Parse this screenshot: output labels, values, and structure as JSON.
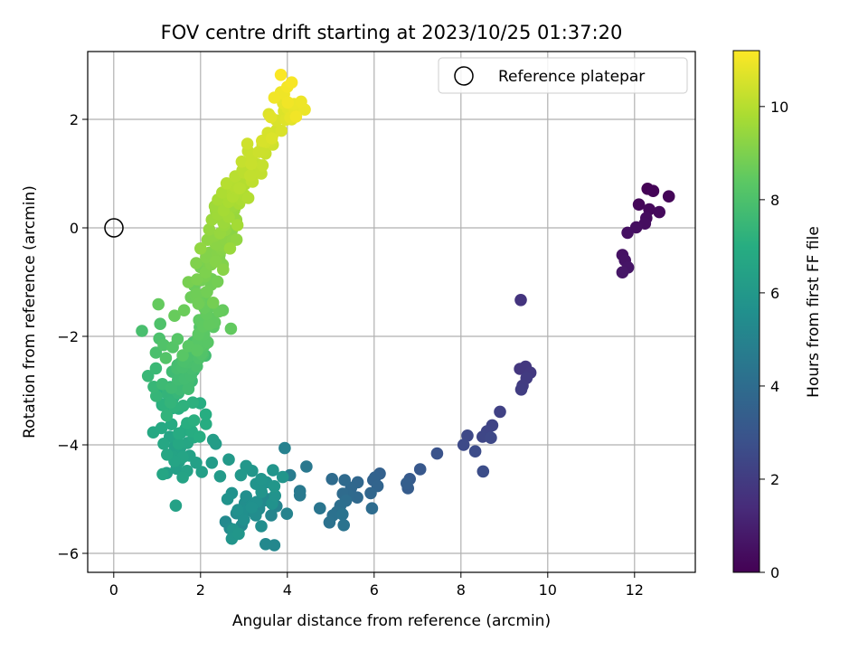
{
  "chart_data": {
    "type": "scatter",
    "title": "FOV centre drift starting at 2023/10/25 01:37:20",
    "xlabel": "Angular distance from reference (arcmin)",
    "ylabel": "Rotation from reference (arcmin)",
    "xlim": [
      -0.6,
      13.4
    ],
    "ylim": [
      -6.35,
      3.25
    ],
    "x_ticks": [
      0,
      2,
      4,
      6,
      8,
      10,
      12
    ],
    "x_tick_labels": [
      "0",
      "2",
      "4",
      "6",
      "8",
      "10",
      "12"
    ],
    "y_ticks": [
      -6,
      -4,
      -2,
      0,
      2
    ],
    "y_tick_labels": [
      "−6",
      "−4",
      "−2",
      "0",
      "2"
    ],
    "grid": true,
    "legend": {
      "position": "top-right",
      "entries": [
        {
          "label": "Reference platepar",
          "marker": "open-circle"
        }
      ]
    },
    "reference_point": {
      "x": 0,
      "y": 0
    },
    "colorbar": {
      "label": "Hours from first FF file",
      "colormap": "viridis",
      "range": [
        0,
        11.2
      ],
      "ticks": [
        0,
        2,
        4,
        6,
        8,
        10
      ],
      "tick_labels": [
        "0",
        "2",
        "4",
        "6",
        "8",
        "10"
      ]
    },
    "anchor_points": [
      [
        12.3,
        0.72,
        0.05
      ],
      [
        12.43,
        0.68,
        0.1
      ],
      [
        12.79,
        0.58,
        0.15
      ],
      [
        12.1,
        0.43,
        0.2
      ],
      [
        12.34,
        0.34,
        0.25
      ],
      [
        12.57,
        0.29,
        0.3
      ],
      [
        12.27,
        0.18,
        0.35
      ],
      [
        12.24,
        0.08,
        0.4
      ],
      [
        12.04,
        0.01,
        0.45
      ],
      [
        11.84,
        -0.09,
        0.5
      ],
      [
        11.72,
        -0.5,
        0.55
      ],
      [
        11.78,
        -0.6,
        0.6
      ],
      [
        11.85,
        -0.73,
        0.65
      ],
      [
        11.72,
        -0.82,
        0.7
      ],
      [
        9.38,
        -1.33,
        1.7
      ],
      [
        9.36,
        -2.6,
        1.8
      ],
      [
        9.49,
        -2.56,
        1.85
      ],
      [
        9.6,
        -2.67,
        1.9
      ],
      [
        9.51,
        -2.77,
        1.95
      ],
      [
        9.42,
        -2.91,
        2.0
      ],
      [
        9.39,
        -2.98,
        2.05
      ],
      [
        8.9,
        -3.39,
        2.2
      ],
      [
        8.72,
        -3.64,
        2.3
      ],
      [
        8.6,
        -3.75,
        2.35
      ],
      [
        8.5,
        -3.85,
        2.4
      ],
      [
        8.69,
        -3.87,
        2.45
      ],
      [
        8.15,
        -3.83,
        2.5
      ],
      [
        8.06,
        -4.0,
        2.55
      ],
      [
        8.33,
        -4.12,
        2.6
      ],
      [
        8.51,
        -4.49,
        2.65
      ],
      [
        7.45,
        -4.16,
        2.9
      ],
      [
        7.06,
        -4.45,
        3.1
      ],
      [
        6.82,
        -4.63,
        3.2
      ],
      [
        6.78,
        -4.8,
        3.3
      ],
      [
        6.75,
        -4.71,
        3.35
      ],
      [
        6.13,
        -4.53,
        3.5
      ],
      [
        6.02,
        -4.6,
        3.55
      ],
      [
        5.98,
        -4.65,
        3.6
      ],
      [
        6.08,
        -4.76,
        3.65
      ],
      [
        5.92,
        -4.89,
        3.7
      ],
      [
        5.62,
        -4.69,
        3.75
      ],
      [
        5.47,
        -4.79,
        3.8
      ],
      [
        5.61,
        -4.97,
        3.85
      ],
      [
        5.42,
        -4.94,
        3.9
      ],
      [
        5.28,
        -4.9,
        3.95
      ],
      [
        5.03,
        -4.63,
        3.95
      ],
      [
        5.32,
        -4.65,
        3.9
      ],
      [
        5.95,
        -5.17,
        4.0
      ],
      [
        5.35,
        -5.03,
        4.05
      ],
      [
        5.22,
        -5.12,
        4.1
      ],
      [
        5.14,
        -5.24,
        4.15
      ],
      [
        5.05,
        -5.3,
        4.2
      ],
      [
        4.97,
        -5.43,
        4.25
      ],
      [
        5.3,
        -5.48,
        4.3
      ],
      [
        5.27,
        -5.28,
        4.3
      ],
      [
        4.75,
        -5.17,
        4.4
      ],
      [
        4.44,
        -4.4,
        4.5
      ],
      [
        4.29,
        -4.85,
        4.55
      ],
      [
        4.29,
        -4.93,
        4.6
      ],
      [
        4.06,
        -4.56,
        4.7
      ],
      [
        3.94,
        -4.06,
        4.9
      ],
      [
        3.99,
        -5.27,
        5.0
      ],
      [
        3.75,
        -5.13,
        5.05
      ],
      [
        3.63,
        -5.3,
        5.1
      ],
      [
        3.55,
        -5.0,
        5.15
      ],
      [
        3.7,
        -5.85,
        5.2
      ],
      [
        3.5,
        -5.83,
        5.25
      ],
      [
        3.45,
        -5.03,
        5.3
      ],
      [
        3.35,
        -5.18,
        5.35
      ],
      [
        3.2,
        -5.1,
        5.4
      ],
      [
        3.27,
        -5.3,
        5.45
      ],
      [
        3.4,
        -5.5,
        5.5
      ],
      [
        3.05,
        -4.95,
        5.55
      ],
      [
        3.0,
        -5.38,
        5.6
      ],
      [
        2.86,
        -5.2,
        5.65
      ],
      [
        2.72,
        -4.89,
        5.7
      ],
      [
        2.62,
        -5.0,
        5.75
      ],
      [
        2.75,
        -5.56,
        5.8
      ],
      [
        2.72,
        -5.73,
        5.85
      ],
      [
        2.88,
        -5.64,
        5.9
      ],
      [
        3.4,
        -4.63,
        5.85
      ],
      [
        3.28,
        -4.72,
        5.8
      ],
      [
        3.19,
        -4.48,
        5.9
      ],
      [
        3.05,
        -4.39,
        5.95
      ],
      [
        2.93,
        -4.56,
        6.0
      ],
      [
        2.65,
        -4.27,
        6.05
      ],
      [
        2.45,
        -4.58,
        6.1
      ],
      [
        2.26,
        -4.33,
        6.15
      ],
      [
        2.35,
        -3.98,
        6.2
      ],
      [
        2.29,
        -3.91,
        6.25
      ],
      [
        2.03,
        -4.5,
        6.3
      ],
      [
        1.9,
        -4.33,
        6.35
      ],
      [
        1.75,
        -4.2,
        6.4
      ],
      [
        1.69,
        -4.48,
        6.45
      ],
      [
        1.59,
        -4.6,
        6.5
      ],
      [
        1.55,
        -4.0,
        6.5
      ],
      [
        1.4,
        -4.3,
        6.55
      ],
      [
        1.13,
        -4.54,
        6.6
      ],
      [
        1.23,
        -4.18,
        6.65
      ],
      [
        1.43,
        -5.12,
        6.4
      ],
      [
        1.15,
        -3.98,
        6.7
      ],
      [
        0.91,
        -3.77,
        6.75
      ],
      [
        1.1,
        -3.69,
        6.8
      ],
      [
        1.33,
        -3.62,
        6.85
      ],
      [
        1.5,
        -3.79,
        6.9
      ],
      [
        1.8,
        -3.75,
        6.95
      ],
      [
        1.98,
        -3.85,
        7.0
      ],
      [
        2.12,
        -3.44,
        7.0
      ],
      [
        1.69,
        -3.6,
        7.05
      ],
      [
        1.85,
        -3.55,
        7.1
      ],
      [
        1.82,
        -3.22,
        7.15
      ],
      [
        1.6,
        -3.28,
        7.2
      ],
      [
        1.4,
        -3.3,
        7.25
      ],
      [
        1.22,
        -3.46,
        7.3
      ],
      [
        1.31,
        -3.22,
        7.35
      ],
      [
        0.98,
        -3.1,
        7.4
      ],
      [
        0.92,
        -2.93,
        7.45
      ],
      [
        0.79,
        -2.73,
        7.5
      ],
      [
        0.97,
        -2.59,
        7.55
      ],
      [
        1.12,
        -2.88,
        7.6
      ],
      [
        1.33,
        -2.95,
        7.65
      ],
      [
        1.48,
        -2.8,
        7.7
      ],
      [
        1.72,
        -2.97,
        7.75
      ],
      [
        1.78,
        -2.72,
        7.8
      ],
      [
        1.55,
        -2.48,
        7.85
      ],
      [
        0.65,
        -1.9,
        7.9
      ],
      [
        0.97,
        -2.3,
        7.95
      ],
      [
        1.05,
        -2.04,
        8.0
      ],
      [
        1.07,
        -1.77,
        8.05
      ],
      [
        1.15,
        -2.16,
        8.1
      ],
      [
        1.2,
        -2.4,
        8.15
      ],
      [
        1.36,
        -2.2,
        8.2
      ],
      [
        1.47,
        -2.05,
        8.25
      ],
      [
        1.59,
        -2.35,
        8.3
      ],
      [
        1.72,
        -2.18,
        8.35
      ],
      [
        1.92,
        -2.26,
        8.35
      ],
      [
        1.95,
        -1.96,
        8.4
      ],
      [
        2.06,
        -1.82,
        8.45
      ],
      [
        2.2,
        -1.78,
        8.5
      ],
      [
        2.7,
        -1.86,
        8.5
      ],
      [
        1.03,
        -1.41,
        8.55
      ],
      [
        1.4,
        -1.62,
        8.6
      ],
      [
        1.62,
        -1.52,
        8.65
      ],
      [
        1.78,
        -1.28,
        8.7
      ],
      [
        1.95,
        -1.4,
        8.75
      ],
      [
        2.15,
        -1.18,
        8.8
      ],
      [
        2.29,
        -1.38,
        8.85
      ],
      [
        1.72,
        -1.0,
        8.9
      ],
      [
        1.92,
        -0.95,
        8.95
      ],
      [
        2.12,
        -0.82,
        9.0
      ],
      [
        1.9,
        -0.65,
        9.05
      ],
      [
        2.13,
        -0.54,
        9.1
      ],
      [
        2.35,
        -0.62,
        9.15
      ],
      [
        2.52,
        -0.77,
        9.2
      ],
      [
        2.35,
        -0.3,
        9.25
      ],
      [
        2.16,
        -0.22,
        9.3
      ],
      [
        2.0,
        -0.38,
        9.35
      ],
      [
        2.2,
        -0.03,
        9.4
      ],
      [
        2.45,
        -0.1,
        9.45
      ],
      [
        2.68,
        -0.38,
        9.5
      ],
      [
        2.55,
        0.05,
        9.5
      ],
      [
        2.26,
        0.15,
        9.55
      ],
      [
        2.4,
        0.25,
        9.6
      ],
      [
        2.65,
        0.2,
        9.65
      ],
      [
        2.85,
        0.05,
        9.7
      ],
      [
        2.4,
        0.52,
        9.75
      ],
      [
        2.65,
        0.48,
        9.8
      ],
      [
        2.5,
        0.65,
        9.85
      ],
      [
        2.74,
        0.68,
        9.9
      ],
      [
        3.1,
        0.55,
        9.95
      ],
      [
        2.6,
        0.82,
        10.0
      ],
      [
        2.8,
        0.95,
        10.05
      ],
      [
        3.0,
        1.02,
        10.1
      ],
      [
        3.2,
        0.85,
        10.15
      ],
      [
        3.4,
        1.0,
        10.2
      ],
      [
        2.95,
        1.22,
        10.25
      ],
      [
        3.18,
        1.32,
        10.3
      ],
      [
        3.45,
        1.42,
        10.35
      ],
      [
        3.08,
        1.55,
        10.4
      ],
      [
        3.6,
        1.58,
        10.45
      ],
      [
        3.75,
        1.8,
        10.5
      ],
      [
        3.55,
        1.75,
        10.55
      ],
      [
        3.75,
        1.98,
        10.6
      ],
      [
        3.92,
        2.15,
        10.65
      ],
      [
        4.1,
        2.0,
        10.7
      ],
      [
        3.62,
        2.04,
        10.75
      ],
      [
        3.9,
        2.3,
        10.8
      ],
      [
        4.1,
        2.28,
        10.85
      ],
      [
        4.4,
        2.18,
        10.9
      ],
      [
        3.85,
        2.5,
        10.95
      ],
      [
        3.7,
        2.4,
        11.0
      ],
      [
        4.0,
        2.6,
        11.05
      ],
      [
        4.1,
        2.68,
        11.1
      ],
      [
        3.85,
        2.82,
        11.15
      ],
      [
        4.2,
        2.05,
        11.0
      ]
    ],
    "dense_segments": [
      {
        "x": [
          1.45,
          2.35
        ],
        "y": [
          -2.9,
          -1.5
        ],
        "t": [
          7.6,
          8.6
        ],
        "count": 45
      },
      {
        "x": [
          1.2,
          1.9
        ],
        "y": [
          -3.4,
          -2.4
        ],
        "t": [
          7.0,
          7.8
        ],
        "count": 30
      },
      {
        "x": [
          2.0,
          2.7
        ],
        "y": [
          -1.3,
          0.2
        ],
        "t": [
          8.6,
          9.5
        ],
        "count": 40
      },
      {
        "x": [
          2.45,
          3.35
        ],
        "y": [
          0.2,
          1.25
        ],
        "t": [
          9.5,
          10.3
        ],
        "count": 32
      },
      {
        "x": [
          3.3,
          4.2
        ],
        "y": [
          1.3,
          2.45
        ],
        "t": [
          10.3,
          11.0
        ],
        "count": 22
      },
      {
        "x": [
          1.2,
          2.0
        ],
        "y": [
          -4.4,
          -3.4
        ],
        "t": [
          6.3,
          7.0
        ],
        "count": 18
      },
      {
        "x": [
          2.8,
          3.8
        ],
        "y": [
          -5.5,
          -4.6
        ],
        "t": [
          5.3,
          5.9
        ],
        "count": 18
      }
    ]
  }
}
